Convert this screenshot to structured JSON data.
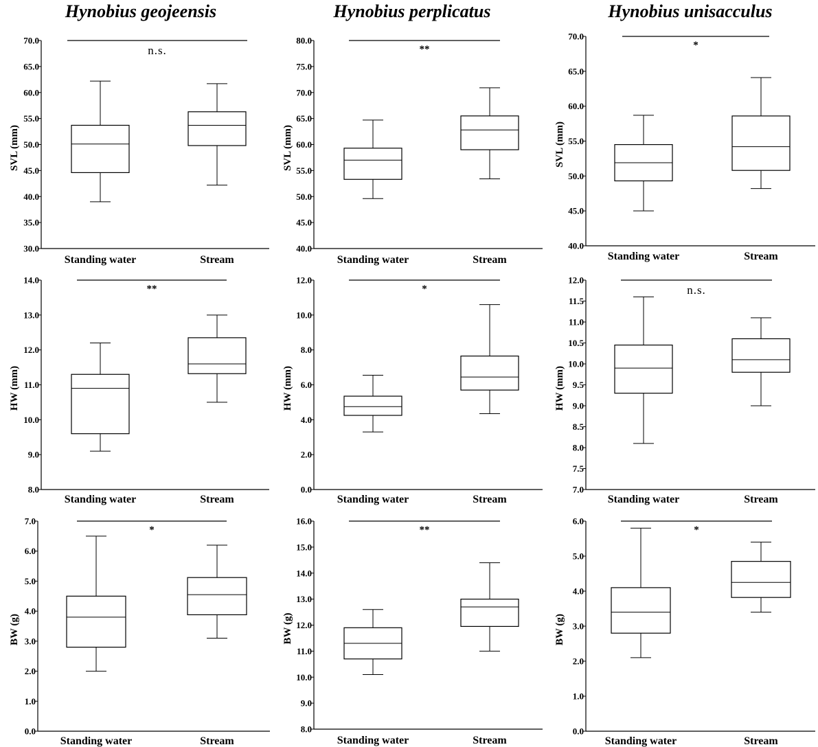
{
  "column_titles": [
    "Hynobius geojeensis",
    "Hynobius perplicatus",
    "Hynobius unisacculus"
  ],
  "chart_data": [
    {
      "type": "box",
      "species": "Hynobius geojeensis",
      "ylabel": "SVL (mm)",
      "ylim": [
        30,
        70
      ],
      "yticks": [
        30,
        35,
        40,
        45,
        50,
        55,
        60,
        65,
        70
      ],
      "tick_format": "0.0",
      "categories": [
        "Standing water",
        "Stream"
      ],
      "boxes": [
        {
          "min": 39.0,
          "q1": 44.6,
          "median": 50.1,
          "q3": 53.7,
          "max": 62.2
        },
        {
          "min": 42.2,
          "q1": 49.8,
          "median": 53.7,
          "q3": 56.3,
          "max": 61.7
        }
      ],
      "significance": "n.s."
    },
    {
      "type": "box",
      "species": "Hynobius perplicatus",
      "ylabel": "SVL (mm)",
      "ylim": [
        40,
        80
      ],
      "yticks": [
        40,
        45,
        50,
        55,
        60,
        65,
        70,
        75,
        80
      ],
      "tick_format": "0.0",
      "categories": [
        "Standing water",
        "Stream"
      ],
      "boxes": [
        {
          "min": 49.6,
          "q1": 53.3,
          "median": 57.0,
          "q3": 59.3,
          "max": 64.7
        },
        {
          "min": 53.4,
          "q1": 59.0,
          "median": 62.8,
          "q3": 65.5,
          "max": 70.9
        }
      ],
      "significance": "**"
    },
    {
      "type": "box",
      "species": "Hynobius unisacculus",
      "ylabel": "SVL (mm)",
      "ylim": [
        40,
        70
      ],
      "yticks": [
        40,
        45,
        50,
        55,
        60,
        65,
        70
      ],
      "tick_format": "0.0",
      "categories": [
        "Standing water",
        "Stream"
      ],
      "boxes": [
        {
          "min": 45.0,
          "q1": 49.3,
          "median": 51.9,
          "q3": 54.5,
          "max": 58.7
        },
        {
          "min": 48.2,
          "q1": 50.8,
          "median": 54.2,
          "q3": 58.6,
          "max": 64.1
        }
      ],
      "significance": "*"
    },
    {
      "type": "box",
      "species": "Hynobius geojeensis",
      "ylabel": "HW (mm)",
      "ylim": [
        8,
        14
      ],
      "yticks": [
        8,
        9,
        10,
        11,
        12,
        13,
        14
      ],
      "tick_format": "0.0",
      "categories": [
        "Standing water",
        "Stream"
      ],
      "boxes": [
        {
          "min": 9.1,
          "q1": 9.6,
          "median": 10.9,
          "q3": 11.3,
          "max": 12.2
        },
        {
          "min": 10.5,
          "q1": 11.32,
          "median": 11.6,
          "q3": 12.35,
          "max": 13.0
        }
      ],
      "significance": "**"
    },
    {
      "type": "box",
      "species": "Hynobius perplicatus",
      "ylabel": "HW (mm)",
      "ylim": [
        0,
        12
      ],
      "yticks": [
        0,
        2,
        4,
        6,
        8,
        10,
        12
      ],
      "tick_format": "0.0",
      "categories": [
        "Standing water",
        "Stream"
      ],
      "boxes": [
        {
          "min": 3.3,
          "q1": 4.25,
          "median": 4.75,
          "q3": 5.35,
          "max": 6.55
        },
        {
          "min": 4.35,
          "q1": 5.7,
          "median": 6.45,
          "q3": 7.65,
          "max": 10.6
        }
      ],
      "significance": "*"
    },
    {
      "type": "box",
      "species": "Hynobius unisacculus",
      "ylabel": "HW (mm)",
      "ylim": [
        7,
        12
      ],
      "yticks": [
        7,
        7.5,
        8,
        8.5,
        9,
        9.5,
        10,
        10.5,
        11,
        11.5,
        12
      ],
      "tick_format": "0.0",
      "categories": [
        "Standing water",
        "Stream"
      ],
      "boxes": [
        {
          "min": 8.1,
          "q1": 9.3,
          "median": 9.9,
          "q3": 10.45,
          "max": 11.6
        },
        {
          "min": 9.0,
          "q1": 9.8,
          "median": 10.1,
          "q3": 10.6,
          "max": 11.1
        }
      ],
      "significance": "n.s."
    },
    {
      "type": "box",
      "species": "Hynobius geojeensis",
      "ylabel": "BW (g)",
      "ylim": [
        0,
        7
      ],
      "yticks": [
        0,
        1,
        2,
        3,
        4,
        5,
        6,
        7
      ],
      "tick_format": "0.0",
      "categories": [
        "Standing water",
        "Stream"
      ],
      "boxes": [
        {
          "min": 2.0,
          "q1": 2.8,
          "median": 3.8,
          "q3": 4.5,
          "max": 6.5
        },
        {
          "min": 3.1,
          "q1": 3.88,
          "median": 4.55,
          "q3": 5.12,
          "max": 6.2
        }
      ],
      "significance": "*"
    },
    {
      "type": "box",
      "species": "Hynobius perplicatus",
      "ylabel": "BW (g)",
      "ylim": [
        8,
        16
      ],
      "yticks": [
        8,
        9,
        10,
        11,
        12,
        13,
        14,
        15,
        16
      ],
      "tick_format": "0.0",
      "categories": [
        "Standing water",
        "Stream"
      ],
      "boxes": [
        {
          "min": 10.1,
          "q1": 10.7,
          "median": 11.3,
          "q3": 11.9,
          "max": 12.6
        },
        {
          "min": 11.0,
          "q1": 11.95,
          "median": 12.7,
          "q3": 13.0,
          "max": 14.4
        }
      ],
      "significance": "**"
    },
    {
      "type": "box",
      "species": "Hynobius unisacculus",
      "ylabel": "BW (g)",
      "ylim": [
        0,
        6
      ],
      "yticks": [
        0,
        1,
        2,
        3,
        4,
        5,
        6
      ],
      "tick_format": "0.0",
      "categories": [
        "Standing water",
        "Stream"
      ],
      "boxes": [
        {
          "min": 2.1,
          "q1": 2.8,
          "median": 3.4,
          "q3": 4.1,
          "max": 5.8
        },
        {
          "min": 3.4,
          "q1": 3.82,
          "median": 4.25,
          "q3": 4.85,
          "max": 5.4
        }
      ],
      "significance": "*"
    }
  ]
}
